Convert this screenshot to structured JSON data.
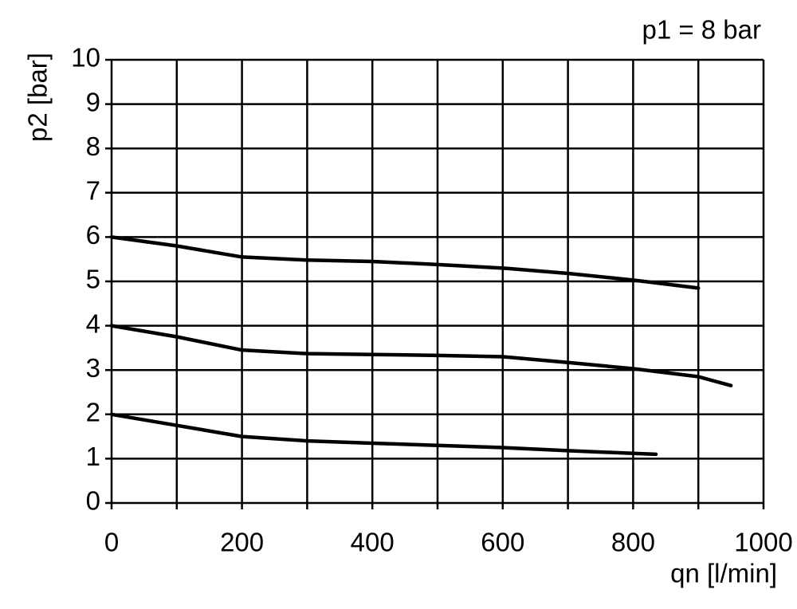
{
  "chart_data": {
    "type": "line",
    "annotation": "p1 = 8 bar",
    "x_label": "qn [l/min]",
    "y_label": "p2 [bar]",
    "xlim": [
      0,
      1000
    ],
    "ylim": [
      0,
      10
    ],
    "xticks": [
      0,
      200,
      400,
      600,
      800,
      1000
    ],
    "x_minor_grid": [
      100,
      300,
      500,
      700,
      900
    ],
    "yticks": [
      0,
      1,
      2,
      3,
      4,
      5,
      6,
      7,
      8,
      9,
      10
    ],
    "grid": true,
    "series": [
      {
        "color": "#000000",
        "x": [
          0,
          100,
          200,
          300,
          400,
          500,
          600,
          700,
          800,
          900
        ],
        "values": [
          6.0,
          5.8,
          5.55,
          5.48,
          5.45,
          5.38,
          5.3,
          5.18,
          5.03,
          4.85
        ]
      },
      {
        "color": "#000000",
        "x": [
          0,
          100,
          200,
          300,
          400,
          500,
          600,
          700,
          800,
          900,
          950
        ],
        "values": [
          4.0,
          3.75,
          3.45,
          3.37,
          3.35,
          3.33,
          3.3,
          3.17,
          3.03,
          2.85,
          2.65
        ]
      },
      {
        "color": "#000000",
        "x": [
          0,
          100,
          200,
          300,
          400,
          500,
          600,
          700,
          800,
          835
        ],
        "values": [
          2.0,
          1.75,
          1.5,
          1.4,
          1.35,
          1.3,
          1.25,
          1.18,
          1.12,
          1.1
        ]
      }
    ]
  }
}
